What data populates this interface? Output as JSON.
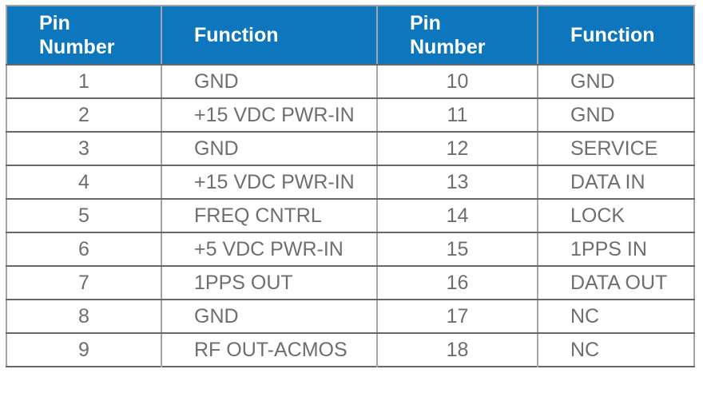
{
  "table": {
    "headers": [
      "Pin\nNumber",
      "Function",
      "Pin\nNumber",
      "Function"
    ],
    "rows": [
      {
        "pin_left": "1",
        "func_left": "GND",
        "pin_right": "10",
        "func_right": "GND"
      },
      {
        "pin_left": "2",
        "func_left": "+15 VDC PWR-IN",
        "pin_right": "11",
        "func_right": "GND"
      },
      {
        "pin_left": "3",
        "func_left": "GND",
        "pin_right": "12",
        "func_right": "SERVICE"
      },
      {
        "pin_left": "4",
        "func_left": "+15 VDC PWR-IN",
        "pin_right": "13",
        "func_right": "DATA IN"
      },
      {
        "pin_left": "5",
        "func_left": "FREQ CNTRL",
        "pin_right": "14",
        "func_right": "LOCK"
      },
      {
        "pin_left": "6",
        "func_left": "+5 VDC PWR-IN",
        "pin_right": "15",
        "func_right": "1PPS IN"
      },
      {
        "pin_left": "7",
        "func_left": "1PPS OUT",
        "pin_right": "16",
        "func_right": "DATA OUT"
      },
      {
        "pin_left": "8",
        "func_left": "GND",
        "pin_right": "17",
        "func_right": "NC"
      },
      {
        "pin_left": "9",
        "func_left": "RF OUT-ACMOS",
        "pin_right": "18",
        "func_right": "NC"
      }
    ]
  },
  "colors": {
    "header_bg": "#0e76bc",
    "header_text": "#ffffff",
    "cell_text": "#6d6e71",
    "border_h": "#65676a",
    "border_v": "#a2a4a7",
    "page_bg": "#ffffff"
  }
}
